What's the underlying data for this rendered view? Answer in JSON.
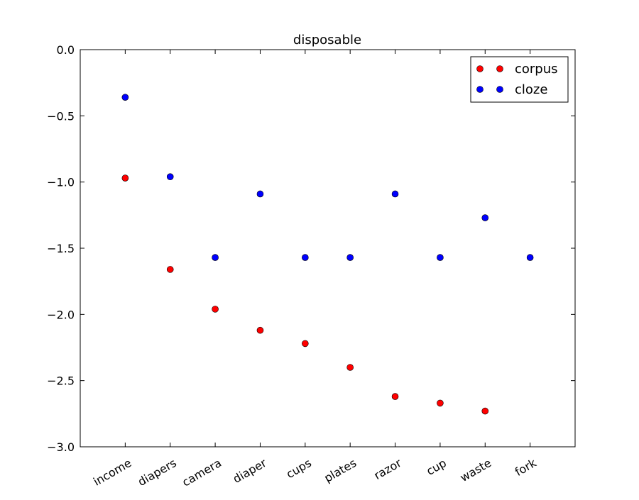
{
  "chart_data": {
    "type": "scatter",
    "title": "disposable",
    "xlabel": "",
    "ylabel": "",
    "categories": [
      "income",
      "diapers",
      "camera",
      "diaper",
      "cups",
      "plates",
      "razor",
      "cup",
      "waste",
      "fork"
    ],
    "ylim": [
      -3.0,
      0.0
    ],
    "yticks": [
      0.0,
      -0.5,
      -1.0,
      -1.5,
      -2.0,
      -2.5,
      -3.0
    ],
    "ytick_labels": [
      "0.0",
      "−0.5",
      "−1.0",
      "−1.5",
      "−2.0",
      "−2.5",
      "−3.0"
    ],
    "grid": false,
    "legend_position": "top-right",
    "series": [
      {
        "name": "corpus",
        "color": "#ff0000",
        "values": [
          -0.97,
          -1.66,
          -1.96,
          -2.12,
          -2.22,
          -2.4,
          -2.62,
          -2.67,
          -2.73,
          null
        ]
      },
      {
        "name": "cloze",
        "color": "#0000ff",
        "values": [
          -0.36,
          -0.96,
          -1.57,
          -1.09,
          -1.57,
          -1.57,
          -1.09,
          -1.57,
          -1.27,
          -1.57
        ]
      }
    ]
  }
}
